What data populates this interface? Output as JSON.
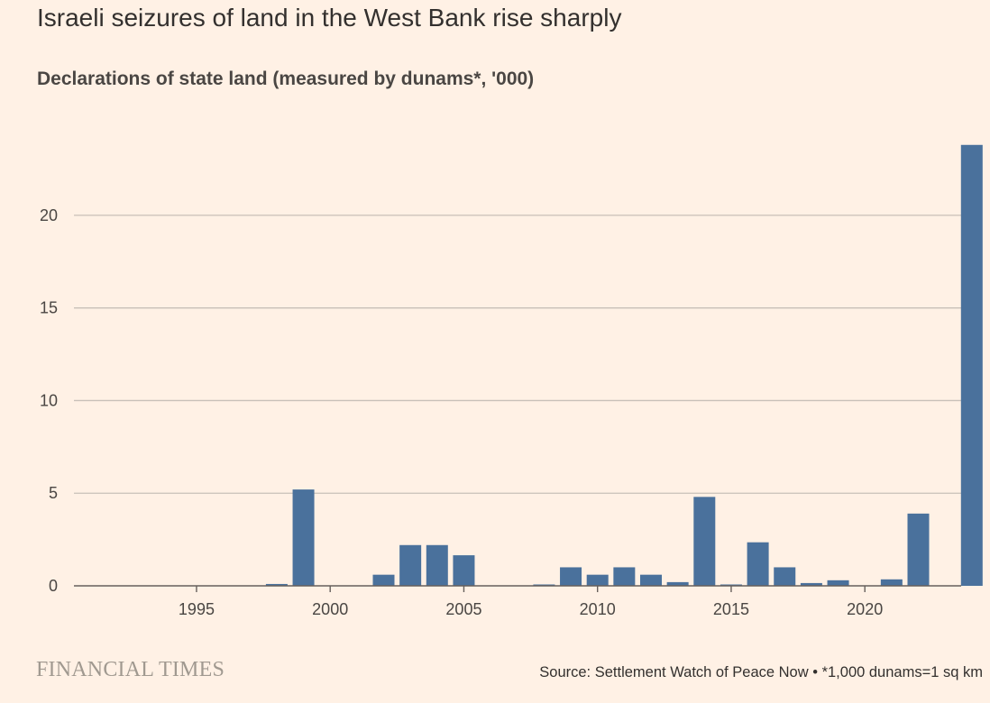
{
  "header": {
    "title": "Israeli seizures of land in the West Bank rise sharply",
    "subtitle": "Declarations of state land (measured by dunams*, '000)"
  },
  "footer": {
    "brand": "FINANCIAL TIMES",
    "source": "Source: Settlement Watch of Peace Now • *1,000 dunams=1 sq km"
  },
  "colors": {
    "background": "#FFF1E5",
    "bar": "#4A719C",
    "grid": "#C8C0B8",
    "axis": "#66605C",
    "text": "#33302E"
  },
  "chart_data": {
    "type": "bar",
    "title": "Israeli seizures of land in the West Bank rise sharply",
    "subtitle": "Declarations of state land (measured by dunams*, '000)",
    "xlabel": "",
    "ylabel": "",
    "x": [
      1992,
      1993,
      1994,
      1995,
      1996,
      1997,
      1998,
      1999,
      2000,
      2001,
      2002,
      2003,
      2004,
      2005,
      2006,
      2007,
      2008,
      2009,
      2010,
      2011,
      2012,
      2013,
      2014,
      2015,
      2016,
      2017,
      2018,
      2019,
      2020,
      2021,
      2022,
      2023,
      2024
    ],
    "values": [
      0,
      0,
      0,
      0,
      0,
      0,
      0.1,
      5.2,
      0,
      0,
      0.6,
      2.2,
      2.2,
      1.65,
      0,
      0,
      0.03,
      1.0,
      0.6,
      1.0,
      0.6,
      0.2,
      4.8,
      0.03,
      2.35,
      1.0,
      0.15,
      0.3,
      0,
      0.35,
      3.9,
      0,
      23.8
    ],
    "x_ticks": [
      1995,
      2000,
      2005,
      2010,
      2015,
      2020
    ],
    "y_ticks": [
      0,
      5,
      10,
      15,
      20
    ],
    "ylim": [
      0,
      25.2
    ],
    "grid": true,
    "legend": "none"
  }
}
